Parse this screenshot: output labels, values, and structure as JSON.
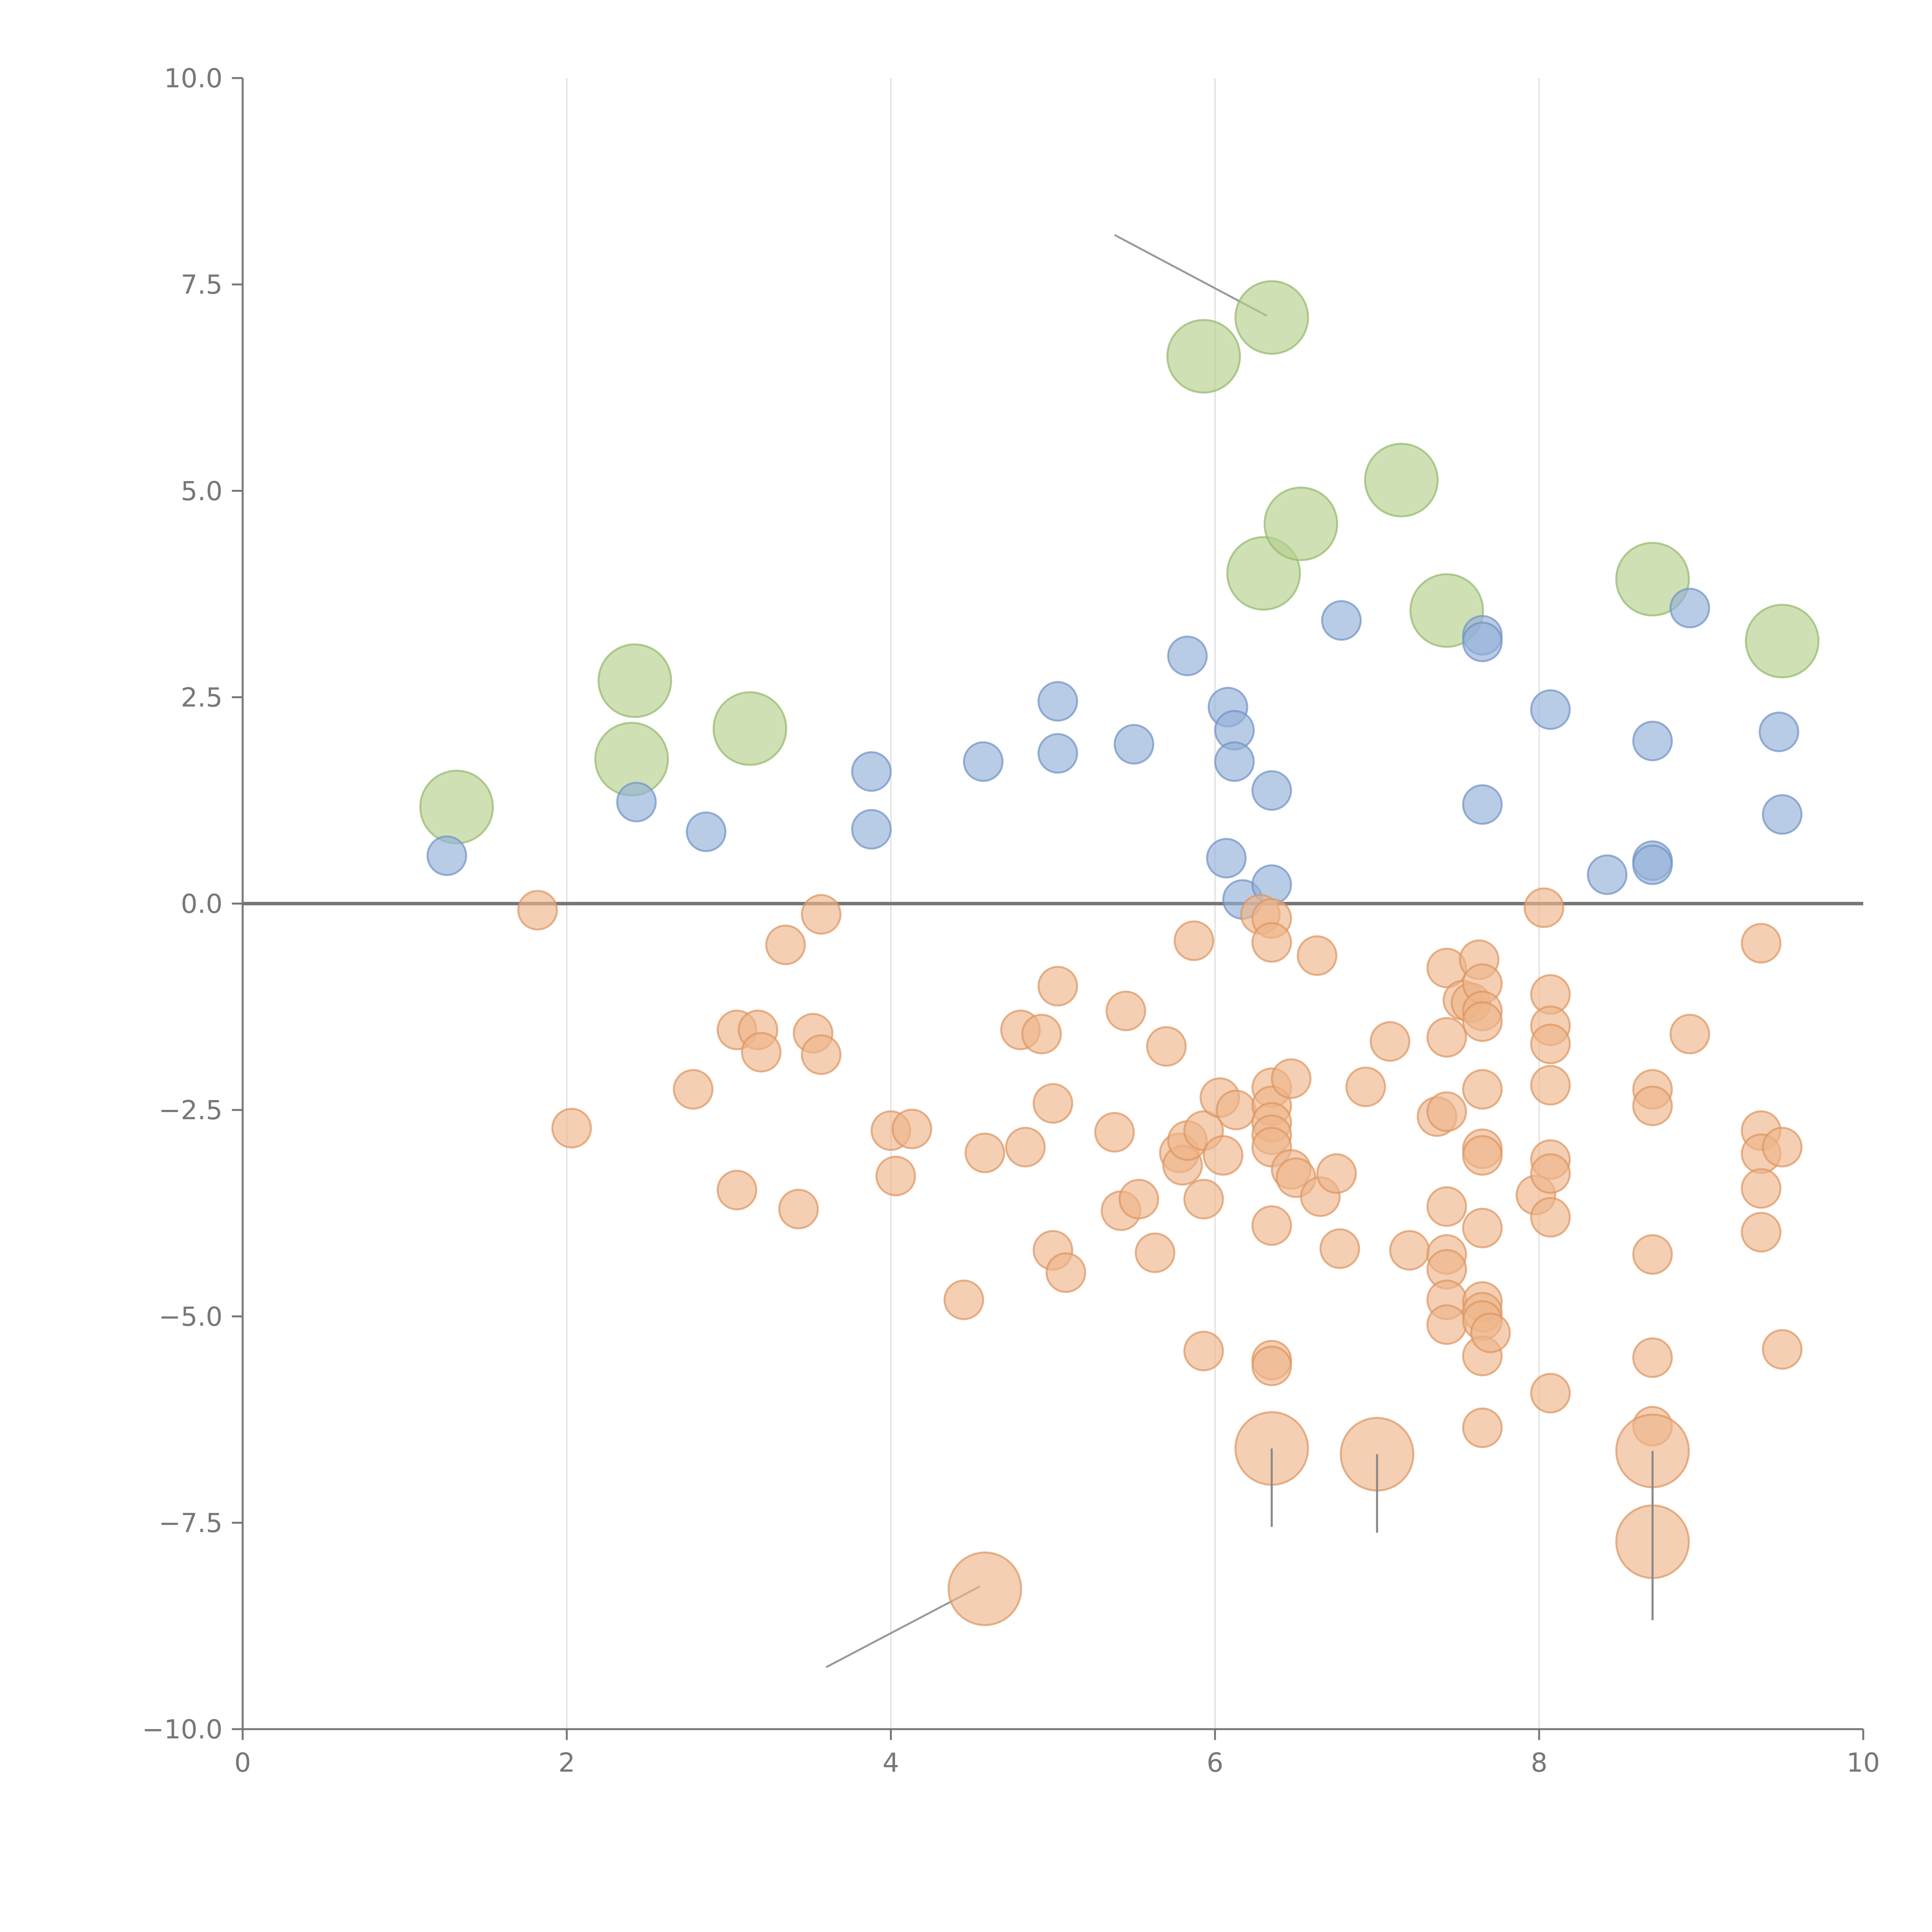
{
  "chart_data": {
    "type": "scatter",
    "title": "",
    "xlabel": "",
    "ylabel": "",
    "xlim": [
      0,
      10
    ],
    "ylim": [
      -10,
      10
    ],
    "grid": "vertical",
    "x_ticks": [
      0,
      2,
      4,
      6,
      8,
      10
    ],
    "x_tick_labels": [
      "0",
      "2",
      "4",
      "6",
      "8",
      "10"
    ],
    "y_ticks": [
      10,
      7.5,
      5,
      2.5,
      0,
      -2.5,
      -5,
      -7.5,
      -10
    ],
    "y_tick_labels": [
      "10.0",
      "7.5",
      "5.0",
      "2.5",
      "0.0",
      "−2.5",
      "−5.0",
      "−7.5",
      "−10.0"
    ],
    "reference_line_y": 0,
    "series": [
      {
        "name": "green",
        "color": "#b6d08e",
        "stroke": "#93b86a",
        "size": "large",
        "points": [
          {
            "x": 1.32,
            "y": 1.17
          },
          {
            "x": 2.42,
            "y": 2.7
          },
          {
            "x": 2.4,
            "y": 1.75
          },
          {
            "x": 3.13,
            "y": 2.12
          },
          {
            "x": 5.93,
            "y": 6.63
          },
          {
            "x": 6.35,
            "y": 7.1
          },
          {
            "x": 6.3,
            "y": 4.0
          },
          {
            "x": 6.53,
            "y": 4.6
          },
          {
            "x": 7.15,
            "y": 5.13
          },
          {
            "x": 7.43,
            "y": 3.55
          },
          {
            "x": 8.7,
            "y": 3.93
          },
          {
            "x": 9.5,
            "y": 3.18
          }
        ]
      },
      {
        "name": "blue",
        "color": "#93b0d9",
        "stroke": "#6f91c5",
        "size": "medium",
        "points": [
          {
            "x": 1.26,
            "y": 0.58
          },
          {
            "x": 2.43,
            "y": 1.23
          },
          {
            "x": 2.86,
            "y": 0.87
          },
          {
            "x": 3.88,
            "y": 1.6
          },
          {
            "x": 3.88,
            "y": 0.9
          },
          {
            "x": 4.57,
            "y": 1.72
          },
          {
            "x": 5.03,
            "y": 2.45
          },
          {
            "x": 5.03,
            "y": 1.82
          },
          {
            "x": 5.5,
            "y": 1.93
          },
          {
            "x": 5.83,
            "y": 3.0
          },
          {
            "x": 6.08,
            "y": 2.38
          },
          {
            "x": 6.12,
            "y": 2.1
          },
          {
            "x": 6.12,
            "y": 1.72
          },
          {
            "x": 6.35,
            "y": 1.37
          },
          {
            "x": 6.07,
            "y": 0.55
          },
          {
            "x": 6.17,
            "y": 0.05
          },
          {
            "x": 6.35,
            "y": 0.23
          },
          {
            "x": 6.78,
            "y": 3.43
          },
          {
            "x": 7.65,
            "y": 3.25
          },
          {
            "x": 7.65,
            "y": 3.17
          },
          {
            "x": 7.65,
            "y": 1.2
          },
          {
            "x": 8.07,
            "y": 2.35
          },
          {
            "x": 8.42,
            "y": 0.35
          },
          {
            "x": 8.7,
            "y": 1.97
          },
          {
            "x": 8.7,
            "y": 0.52
          },
          {
            "x": 8.7,
            "y": 0.47
          },
          {
            "x": 8.93,
            "y": 3.58
          },
          {
            "x": 9.48,
            "y": 2.08
          },
          {
            "x": 9.5,
            "y": 1.08
          }
        ]
      },
      {
        "name": "orange",
        "color": "#eeb58a",
        "stroke": "#dc9460",
        "size": "medium",
        "points": [
          {
            "x": 1.82,
            "y": -0.08
          },
          {
            "x": 2.03,
            "y": -2.72
          },
          {
            "x": 2.78,
            "y": -2.25
          },
          {
            "x": 3.05,
            "y": -1.53
          },
          {
            "x": 3.05,
            "y": -3.47
          },
          {
            "x": 3.18,
            "y": -1.53
          },
          {
            "x": 3.2,
            "y": -1.8
          },
          {
            "x": 3.35,
            "y": -0.5
          },
          {
            "x": 3.43,
            "y": -3.7
          },
          {
            "x": 3.52,
            "y": -1.57
          },
          {
            "x": 3.57,
            "y": -0.13
          },
          {
            "x": 3.57,
            "y": -1.83
          },
          {
            "x": 4.0,
            "y": -2.75
          },
          {
            "x": 4.03,
            "y": -3.3
          },
          {
            "x": 4.13,
            "y": -2.73
          },
          {
            "x": 4.45,
            "y": -4.8
          },
          {
            "x": 4.58,
            "y": -3.02
          },
          {
            "x": 4.8,
            "y": -1.53
          },
          {
            "x": 4.83,
            "y": -2.95
          },
          {
            "x": 4.93,
            "y": -1.58
          },
          {
            "x": 5.0,
            "y": -2.42
          },
          {
            "x": 5.03,
            "y": -1.0
          },
          {
            "x": 5.0,
            "y": -4.2
          },
          {
            "x": 5.08,
            "y": -4.47
          },
          {
            "x": 5.38,
            "y": -2.77
          },
          {
            "x": 5.42,
            "y": -3.72
          },
          {
            "x": 5.45,
            "y": -1.3
          },
          {
            "x": 5.53,
            "y": -3.58
          },
          {
            "x": 5.63,
            "y": -4.23
          },
          {
            "x": 5.7,
            "y": -1.73
          },
          {
            "x": 5.78,
            "y": -3.02
          },
          {
            "x": 5.8,
            "y": -3.17
          },
          {
            "x": 5.83,
            "y": -2.87
          },
          {
            "x": 5.87,
            "y": -0.45
          },
          {
            "x": 5.93,
            "y": -2.75
          },
          {
            "x": 5.93,
            "y": -3.58
          },
          {
            "x": 5.93,
            "y": -5.42
          },
          {
            "x": 6.03,
            "y": -2.35
          },
          {
            "x": 6.05,
            "y": -3.05
          },
          {
            "x": 6.13,
            "y": -2.5
          },
          {
            "x": 6.28,
            "y": -0.13
          },
          {
            "x": 6.35,
            "y": -0.18
          },
          {
            "x": 6.35,
            "y": -0.47
          },
          {
            "x": 6.35,
            "y": -2.23
          },
          {
            "x": 6.35,
            "y": -2.45
          },
          {
            "x": 6.35,
            "y": -2.65
          },
          {
            "x": 6.35,
            "y": -2.8
          },
          {
            "x": 6.35,
            "y": -2.95
          },
          {
            "x": 6.35,
            "y": -3.9
          },
          {
            "x": 6.35,
            "y": -5.53
          },
          {
            "x": 6.35,
            "y": -5.6
          },
          {
            "x": 6.47,
            "y": -2.12
          },
          {
            "x": 6.47,
            "y": -3.22
          },
          {
            "x": 6.5,
            "y": -3.32
          },
          {
            "x": 6.63,
            "y": -0.63
          },
          {
            "x": 6.65,
            "y": -3.55
          },
          {
            "x": 6.75,
            "y": -3.27
          },
          {
            "x": 6.77,
            "y": -4.18
          },
          {
            "x": 6.93,
            "y": -2.22
          },
          {
            "x": 7.08,
            "y": -1.67
          },
          {
            "x": 7.2,
            "y": -4.2
          },
          {
            "x": 7.37,
            "y": -2.58
          },
          {
            "x": 7.43,
            "y": -0.78
          },
          {
            "x": 7.43,
            "y": -1.62
          },
          {
            "x": 7.43,
            "y": -2.52
          },
          {
            "x": 7.43,
            "y": -3.67
          },
          {
            "x": 7.43,
            "y": -4.25
          },
          {
            "x": 7.43,
            "y": -4.43
          },
          {
            "x": 7.43,
            "y": -4.8
          },
          {
            "x": 7.43,
            "y": -5.1
          },
          {
            "x": 7.53,
            "y": -1.17
          },
          {
            "x": 7.58,
            "y": -1.2
          },
          {
            "x": 7.63,
            "y": -0.68
          },
          {
            "x": 7.65,
            "y": -0.97
          },
          {
            "x": 7.65,
            "y": -1.3
          },
          {
            "x": 7.65,
            "y": -1.43
          },
          {
            "x": 7.65,
            "y": -2.25
          },
          {
            "x": 7.65,
            "y": -2.97
          },
          {
            "x": 7.65,
            "y": -3.05
          },
          {
            "x": 7.65,
            "y": -3.93
          },
          {
            "x": 7.65,
            "y": -4.82
          },
          {
            "x": 7.65,
            "y": -4.95
          },
          {
            "x": 7.65,
            "y": -5.05
          },
          {
            "x": 7.65,
            "y": -5.48
          },
          {
            "x": 7.65,
            "y": -6.35
          },
          {
            "x": 7.7,
            "y": -5.2
          },
          {
            "x": 7.98,
            "y": -3.53
          },
          {
            "x": 8.03,
            "y": -0.05
          },
          {
            "x": 8.07,
            "y": -1.1
          },
          {
            "x": 8.07,
            "y": -1.48
          },
          {
            "x": 8.07,
            "y": -1.7
          },
          {
            "x": 8.07,
            "y": -2.2
          },
          {
            "x": 8.07,
            "y": -3.1
          },
          {
            "x": 8.07,
            "y": -3.27
          },
          {
            "x": 8.07,
            "y": -3.8
          },
          {
            "x": 8.07,
            "y": -5.93
          },
          {
            "x": 8.7,
            "y": -2.25
          },
          {
            "x": 8.7,
            "y": -2.45
          },
          {
            "x": 8.7,
            "y": -4.25
          },
          {
            "x": 8.7,
            "y": -5.5
          },
          {
            "x": 8.7,
            "y": -6.33
          },
          {
            "x": 8.93,
            "y": -1.58
          },
          {
            "x": 9.37,
            "y": -0.48
          },
          {
            "x": 9.37,
            "y": -2.75
          },
          {
            "x": 9.37,
            "y": -3.03
          },
          {
            "x": 9.37,
            "y": -3.45
          },
          {
            "x": 9.37,
            "y": -3.98
          },
          {
            "x": 9.5,
            "y": -2.95
          },
          {
            "x": 9.5,
            "y": -5.4
          }
        ]
      },
      {
        "name": "orange-large",
        "color": "#eeb58a",
        "stroke": "#dc9460",
        "size": "large",
        "points": [
          {
            "x": 4.58,
            "y": -8.3
          },
          {
            "x": 6.35,
            "y": -6.6
          },
          {
            "x": 7.0,
            "y": -6.67
          },
          {
            "x": 8.7,
            "y": -6.63
          },
          {
            "x": 8.7,
            "y": -7.73
          }
        ]
      }
    ],
    "annotations": [
      {
        "from": {
          "x": 5.38,
          "y": 8.1
        },
        "to": {
          "x": 6.32,
          "y": 7.12
        },
        "color": "#999999"
      },
      {
        "from": {
          "x": 3.6,
          "y": -9.25
        },
        "to": {
          "x": 4.55,
          "y": -8.27
        },
        "color": "#999999"
      },
      {
        "from": {
          "x": 6.35,
          "y": -6.6
        },
        "to": {
          "x": 6.35,
          "y": -7.55
        },
        "color": "#888888"
      },
      {
        "from": {
          "x": 7.0,
          "y": -6.67
        },
        "to": {
          "x": 7.0,
          "y": -7.62
        },
        "color": "#888888"
      },
      {
        "from": {
          "x": 8.7,
          "y": -6.63
        },
        "to": {
          "x": 8.7,
          "y": -8.68
        },
        "color": "#888888"
      }
    ]
  }
}
